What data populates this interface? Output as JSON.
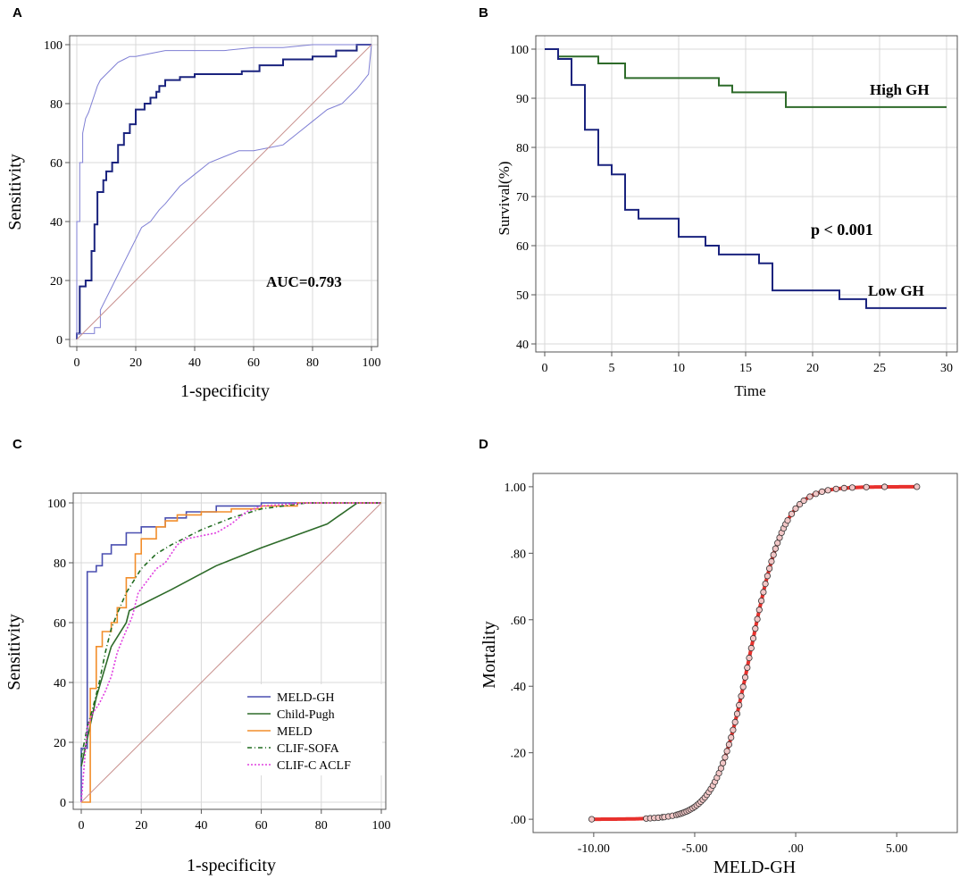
{
  "chart_data": [
    {
      "panel": "A",
      "type": "line",
      "xlabel": "1-specificity",
      "ylabel": "Sensitivity",
      "xlim": [
        0,
        100
      ],
      "ylim": [
        0,
        100
      ],
      "xticks": [
        0,
        20,
        40,
        60,
        80,
        100
      ],
      "yticks": [
        0,
        20,
        40,
        60,
        80,
        100
      ],
      "annotation": "AUC=0.793",
      "grid": true,
      "series": [
        {
          "name": "ROC",
          "color": "#1a237e",
          "x": [
            0,
            0,
            0,
            1,
            1,
            3,
            3,
            5,
            5,
            6,
            6,
            7,
            7,
            9,
            9,
            10,
            10,
            12,
            12,
            14,
            14,
            16,
            16,
            18,
            18,
            20,
            20,
            23,
            23,
            25,
            25,
            27,
            27,
            28,
            28,
            30,
            30,
            35,
            35,
            40,
            40,
            56,
            56,
            62,
            62,
            70,
            70,
            80,
            80,
            88,
            88,
            95,
            95,
            100
          ],
          "y": [
            0,
            2,
            2,
            2,
            18,
            18,
            20,
            20,
            30,
            30,
            39,
            39,
            50,
            50,
            54,
            54,
            57,
            57,
            60,
            60,
            66,
            66,
            70,
            70,
            73,
            73,
            78,
            78,
            80,
            80,
            82,
            82,
            84,
            84,
            86,
            86,
            88,
            88,
            89,
            89,
            90,
            90,
            91,
            91,
            93,
            93,
            95,
            95,
            96,
            96,
            98,
            98,
            100,
            100
          ]
        },
        {
          "name": "CI upper",
          "color": "#7f7fd4",
          "x": [
            0,
            0,
            1,
            1,
            2,
            2,
            3,
            4,
            5,
            6,
            7,
            8,
            10,
            12,
            14,
            16,
            18,
            20,
            25,
            30,
            40,
            50,
            60,
            70,
            80,
            90,
            100
          ],
          "y": [
            0,
            40,
            40,
            60,
            60,
            70,
            75,
            77,
            80,
            83,
            86,
            88,
            90,
            92,
            94,
            95,
            96,
            96,
            97,
            98,
            98,
            98,
            99,
            99,
            100,
            100,
            100
          ]
        },
        {
          "name": "CI lower",
          "color": "#7f7fd4",
          "x": [
            0,
            0,
            6,
            6,
            8,
            8,
            10,
            12,
            14,
            16,
            18,
            20,
            22,
            25,
            28,
            30,
            35,
            40,
            45,
            50,
            55,
            60,
            65,
            70,
            75,
            80,
            85,
            90,
            95,
            99,
            100
          ],
          "y": [
            0,
            2,
            2,
            4,
            4,
            10,
            14,
            18,
            22,
            26,
            30,
            34,
            38,
            40,
            44,
            46,
            52,
            56,
            60,
            62,
            64,
            64,
            65,
            66,
            70,
            74,
            78,
            80,
            85,
            90,
            100
          ]
        },
        {
          "name": "Reference",
          "color": "#c9928f",
          "x": [
            0,
            100
          ],
          "y": [
            0,
            100
          ]
        }
      ]
    },
    {
      "panel": "B",
      "type": "line",
      "xlabel": "Time",
      "ylabel": "Survival(%)",
      "xlim": [
        0,
        30
      ],
      "ylim": [
        40,
        100
      ],
      "xticks": [
        0,
        5,
        10,
        15,
        20,
        25,
        30
      ],
      "yticks": [
        40,
        50,
        60,
        70,
        80,
        90,
        100
      ],
      "annotation": "p < 0.001",
      "grid": true,
      "series": [
        {
          "name": "High GH",
          "color": "#2e6b2a",
          "x": [
            0,
            1,
            1,
            4,
            4,
            6,
            6,
            13,
            13,
            14,
            14,
            18,
            18,
            30
          ],
          "y": [
            100,
            100,
            98.5,
            98.5,
            97.1,
            97.1,
            94.1,
            94.1,
            92.6,
            92.6,
            91.2,
            91.2,
            88.2,
            88.2
          ]
        },
        {
          "name": "Low GH",
          "color": "#1a237e",
          "x": [
            0,
            1,
            1,
            2,
            2,
            3,
            3,
            4,
            4,
            5,
            5,
            6,
            6,
            7,
            7,
            10,
            10,
            12,
            12,
            13,
            13,
            16,
            16,
            17,
            17,
            22,
            22,
            24,
            24,
            30
          ],
          "y": [
            100,
            100,
            98,
            98,
            92.7,
            92.7,
            83.6,
            83.6,
            76.4,
            76.4,
            74.5,
            74.5,
            67.3,
            67.3,
            65.5,
            65.5,
            61.8,
            61.8,
            60,
            60,
            58.2,
            58.2,
            56.4,
            56.4,
            50.9,
            50.9,
            49.1,
            49.1,
            47.3,
            47.3
          ]
        }
      ]
    },
    {
      "panel": "C",
      "type": "line",
      "xlabel": "1-specificity",
      "ylabel": "Sensitivity",
      "xlim": [
        0,
        100
      ],
      "ylim": [
        0,
        100
      ],
      "xticks": [
        0,
        20,
        40,
        60,
        80,
        100
      ],
      "yticks": [
        0,
        20,
        40,
        60,
        80,
        100
      ],
      "grid": true,
      "legend_position": "bottom-right",
      "series": [
        {
          "name": "MELD-GH",
          "color": "#4a4fb0",
          "dash": "",
          "x": [
            0,
            0,
            2,
            2,
            5,
            5,
            7,
            7,
            10,
            10,
            15,
            15,
            20,
            20,
            28,
            28,
            35,
            35,
            45,
            45,
            60,
            60,
            100
          ],
          "y": [
            0,
            18,
            18,
            77,
            77,
            79,
            79,
            83,
            83,
            86,
            86,
            90,
            90,
            92,
            92,
            95,
            95,
            97,
            97,
            99,
            99,
            100,
            100
          ]
        },
        {
          "name": "Child-Pugh",
          "color": "#2e6b2a",
          "dash": "",
          "x": [
            0,
            5,
            10,
            15,
            16,
            30,
            45,
            60,
            82,
            92,
            100
          ],
          "y": [
            12,
            35,
            52,
            60,
            64,
            71,
            79,
            85,
            93,
            100,
            100
          ]
        },
        {
          "name": "MELD",
          "color": "#f28e2b",
          "dash": "",
          "x": [
            0,
            3,
            3,
            3,
            5,
            5,
            7,
            7,
            10,
            10,
            12,
            12,
            15,
            15,
            18,
            18,
            20,
            20,
            25,
            25,
            28,
            28,
            32,
            32,
            40,
            40,
            50,
            50,
            60,
            60,
            72,
            72,
            100
          ],
          "y": [
            0,
            0,
            17,
            38,
            38,
            52,
            52,
            57,
            57,
            60,
            60,
            65,
            65,
            75,
            75,
            83,
            83,
            88,
            88,
            92,
            92,
            94,
            94,
            96,
            96,
            97,
            97,
            98,
            98,
            99,
            99,
            100,
            100
          ]
        },
        {
          "name": "CLIF-SOFA",
          "color": "#1f6b1f",
          "dash": "5 3 1 3",
          "x": [
            0,
            2,
            4,
            6,
            8,
            10,
            12,
            15,
            20,
            25,
            30,
            40,
            50,
            60,
            75,
            100
          ],
          "y": [
            15,
            25,
            32,
            40,
            50,
            58,
            63,
            70,
            78,
            83,
            86,
            91,
            95,
            98,
            100,
            100
          ]
        },
        {
          "name": "CLIF-C ACLF",
          "color": "#e040e0",
          "dash": "2 2",
          "x": [
            0,
            2,
            4,
            6,
            8,
            10,
            12,
            14,
            17,
            19,
            22,
            25,
            28,
            32,
            35,
            40,
            45,
            50,
            55,
            60,
            75,
            100
          ],
          "y": [
            0,
            25,
            30,
            33,
            37,
            42,
            50,
            55,
            62,
            70,
            74,
            78,
            80,
            86,
            88,
            89,
            90,
            93,
            97,
            99,
            100,
            100
          ]
        },
        {
          "name": "Reference",
          "color": "#c9928f",
          "dash": "",
          "x": [
            0,
            100
          ],
          "y": [
            0,
            100
          ]
        }
      ]
    },
    {
      "panel": "D",
      "type": "scatter",
      "xlabel": "MELD-GH",
      "ylabel": "Mortality",
      "xlim": [
        -13,
        8
      ],
      "ylim": [
        -0.04,
        1.04
      ],
      "xticks": [
        -10,
        -5,
        0,
        5
      ],
      "xtick_labels": [
        "-10.00",
        "-5.00",
        ".00",
        "5.00"
      ],
      "yticks": [
        0,
        0.2,
        0.4,
        0.6,
        0.8,
        1.0
      ],
      "ytick_labels": [
        ".00",
        ".20",
        ".40",
        ".60",
        ".80",
        "1.00"
      ],
      "grid": false,
      "curve": {
        "type": "logistic",
        "midpoint": -2.25,
        "slope": 1.18,
        "color": "#e8312d"
      },
      "points_x": [
        -10.1,
        -7.4,
        -7.2,
        -7.0,
        -6.8,
        -6.6,
        -6.5,
        -6.3,
        -6.1,
        -5.9,
        -5.8,
        -5.7,
        -5.6,
        -5.5,
        -5.4,
        -5.3,
        -5.2,
        -5.1,
        -5.0,
        -4.9,
        -4.8,
        -4.7,
        -4.6,
        -4.5,
        -4.4,
        -4.3,
        -4.2,
        -4.1,
        -4.0,
        -3.9,
        -3.8,
        -3.7,
        -3.6,
        -3.5,
        -3.4,
        -3.3,
        -3.2,
        -3.1,
        -3.0,
        -2.9,
        -2.8,
        -2.7,
        -2.6,
        -2.5,
        -2.4,
        -2.3,
        -2.2,
        -2.1,
        -2.0,
        -1.9,
        -1.8,
        -1.7,
        -1.6,
        -1.5,
        -1.4,
        -1.3,
        -1.2,
        -1.1,
        -1.0,
        -0.9,
        -0.8,
        -0.7,
        -0.6,
        -0.5,
        -0.4,
        -0.2,
        0.0,
        0.2,
        0.4,
        0.7,
        1.0,
        1.3,
        1.6,
        2.0,
        2.4,
        2.8,
        3.5,
        4.4,
        6.0
      ]
    }
  ]
}
